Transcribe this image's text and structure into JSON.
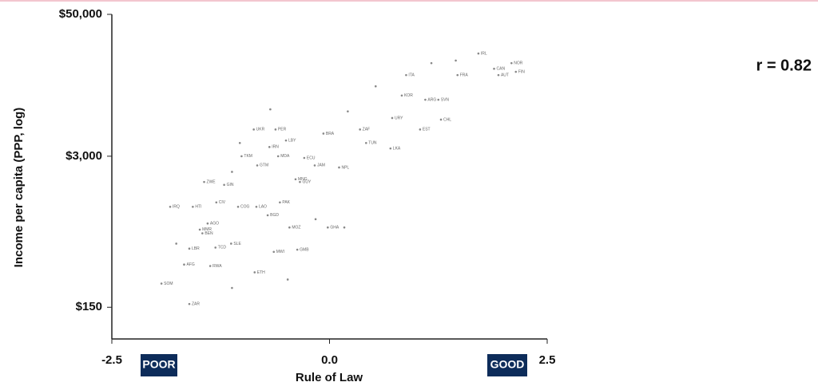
{
  "chart_data": {
    "type": "scatter",
    "xlabel": "Rule of Law",
    "ylabel": "Income per capita (PPP, log)",
    "annotation": "r = 0.82",
    "x_low_label": "POOR",
    "x_high_label": "GOOD",
    "log_y": true,
    "color": "#888888",
    "xlim": [
      -2.5,
      2.5
    ],
    "xticks": [
      -2.5,
      {
        "value": 0,
        "label": "0.0"
      },
      2.5
    ],
    "ylim": [
      80,
      50000
    ],
    "yticks": [
      {
        "value": 150,
        "label": "$150"
      },
      {
        "value": 3000,
        "label": "$3,000"
      },
      {
        "value": 50000,
        "label": "$50,000"
      }
    ],
    "labels": [
      "IRL",
      "NOR",
      "CAN",
      "AUT",
      "FIN",
      "FRA",
      "ITA",
      "KOR",
      "ARG",
      "SVN",
      "URY",
      "CHL",
      "EST",
      "ZAF",
      "BRA",
      "TUN",
      "LKA",
      "PER",
      "UKR",
      "LBY",
      "IRN",
      "MDA",
      "ECU",
      "TKM",
      "JAM",
      "NPL",
      "GTM",
      "MNG",
      "GUY",
      "ZWE",
      "GIN",
      "IRQ",
      "HTI",
      "CIV",
      "COG",
      "LAO",
      "PAK",
      "BGD",
      "AGO",
      "MMR",
      "BEN",
      "MOZ",
      "GHA",
      "LBR",
      "TCD",
      "SLE",
      "MWI",
      "GMB",
      "AFG",
      "RWA",
      "ETH",
      "SOM",
      "ZAR",
      null,
      null,
      null,
      null,
      null,
      null,
      null,
      null,
      null,
      null,
      null,
      null
    ],
    "x": [
      1.71,
      2.09,
      1.89,
      1.94,
      2.14,
      1.47,
      0.88,
      0.83,
      1.1,
      1.25,
      0.72,
      1.28,
      1.04,
      0.35,
      -0.07,
      0.42,
      0.7,
      -0.62,
      -0.87,
      -0.5,
      -0.69,
      -0.59,
      -0.29,
      -1.01,
      -0.17,
      0.11,
      -0.83,
      -0.39,
      -0.34,
      -1.44,
      -1.21,
      -1.83,
      -1.57,
      -1.3,
      -1.05,
      -0.84,
      -0.57,
      -0.71,
      -1.4,
      -1.49,
      -1.46,
      -0.46,
      -0.02,
      -1.61,
      -1.31,
      -1.13,
      -0.64,
      -0.37,
      -1.67,
      -1.37,
      -0.86,
      -1.93,
      -1.61,
      -0.68,
      1.17,
      1.45,
      0.53,
      0.21,
      -1.03,
      -1.12,
      -0.16,
      0.17,
      -0.48,
      -1.12,
      -1.76
    ],
    "values": [
      23000,
      19000,
      17000,
      15000,
      16000,
      15000,
      15000,
      10000,
      9200,
      9200,
      6400,
      6200,
      5100,
      5100,
      4700,
      3900,
      3500,
      5100,
      5100,
      4100,
      3600,
      3000,
      2900,
      3000,
      2500,
      2400,
      2500,
      1900,
      1800,
      1800,
      1700,
      1100,
      1100,
      1200,
      1100,
      1100,
      1200,
      930,
      790,
      700,
      650,
      730,
      730,
      480,
      490,
      530,
      450,
      470,
      350,
      340,
      300,
      240,
      160,
      7600,
      19000,
      20000,
      12000,
      7300,
      3900,
      2200,
      860,
      730,
      260,
      220,
      530
    ]
  }
}
